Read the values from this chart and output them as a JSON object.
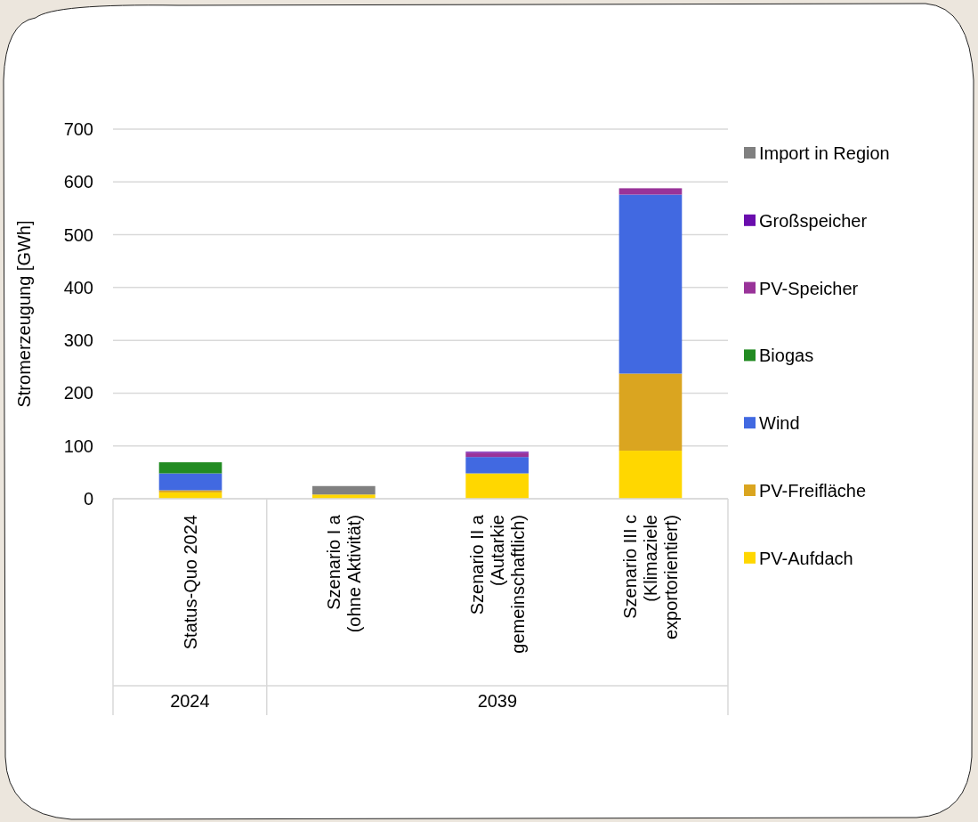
{
  "chart_data": {
    "type": "bar",
    "stacked": true,
    "ylabel": "Stromerzeugung [GWh]",
    "categories": [
      "Status-Quo 2024",
      "Szenario I a\n(ohne Aktivität)",
      "Szenario II a\n(Autarkie\ngemeinschaftlich)",
      "Szenario III c\n(Klimaziele\nexportorientiert)"
    ],
    "series": [
      {
        "name": "PV-Aufdach",
        "color": "#ffd700",
        "values": [
          12,
          8,
          48,
          91
        ]
      },
      {
        "name": "PV-Freifläche",
        "color": "#daa520",
        "values": [
          4,
          null,
          0,
          146
        ]
      },
      {
        "name": "Wind",
        "color": "#4169e1",
        "values": [
          32,
          0,
          31,
          339
        ]
      },
      {
        "name": "Biogas",
        "color": "#228b22",
        "values": [
          21,
          0,
          null,
          0
        ]
      },
      {
        "name": "PV-Speicher",
        "color": "#993399",
        "values": [
          0,
          0,
          8,
          12
        ]
      },
      {
        "name": "Großspeicher",
        "color": "#6a0dad",
        "values": [
          0,
          0,
          2,
          null
        ]
      },
      {
        "name": "Import in Region",
        "color": "#808080",
        "values": [
          null,
          16,
          0,
          0
        ]
      }
    ],
    "annotations": [
      "2024",
      "2039"
    ],
    "ylim": [
      0,
      700
    ],
    "yticks": [
      0,
      100,
      200,
      300,
      400,
      500,
      600,
      700
    ],
    "grid": "y",
    "legend": "right"
  }
}
